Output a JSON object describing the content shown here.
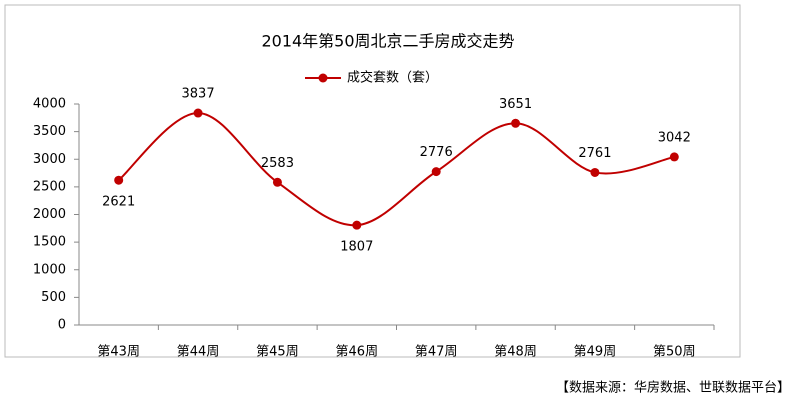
{
  "chart_data": {
    "type": "line",
    "title": "2014年第50周北京二手房成交走势",
    "categories": [
      "第43周",
      "第44周",
      "第45周",
      "第46周",
      "第47周",
      "第48周",
      "第49周",
      "第50周"
    ],
    "series": [
      {
        "name": "成交套数（套）",
        "color": "#c00000",
        "values": [
          2621,
          3837,
          2583,
          1807,
          2776,
          3651,
          2761,
          3042
        ]
      }
    ],
    "ylim": [
      0,
      4000
    ],
    "yticks": [
      0,
      500,
      1000,
      1500,
      2000,
      2500,
      3000,
      3500,
      4000
    ],
    "grid": false,
    "legend": "top",
    "source": "【数据来源：华房数据、世联数据平台】"
  }
}
